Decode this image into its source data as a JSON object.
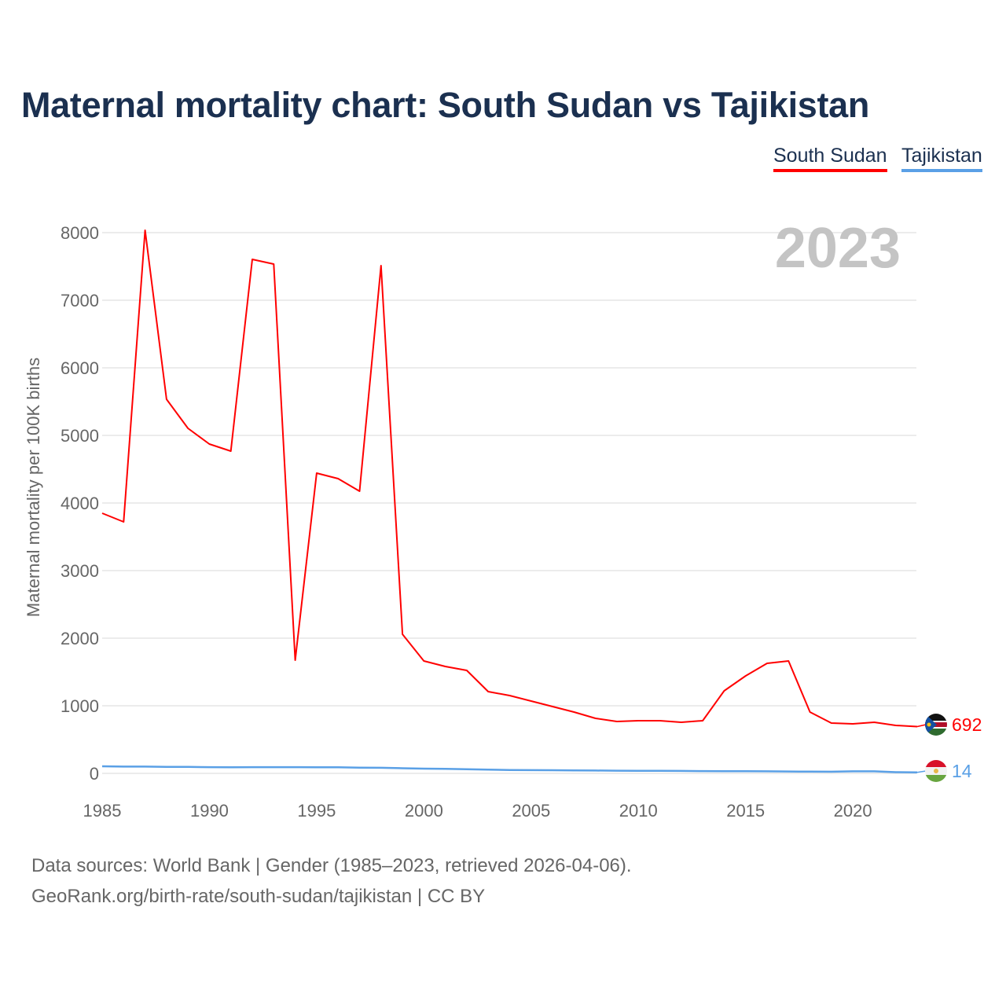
{
  "chart_data": {
    "type": "line",
    "title": "Maternal mortality chart: South Sudan vs Tajikistan",
    "ylabel": "Maternal mortality per 100K births",
    "xlabel": "",
    "ylim": [
      0,
      8000
    ],
    "xlim": [
      1985,
      2023
    ],
    "yticks": [
      0,
      1000,
      2000,
      3000,
      4000,
      5000,
      6000,
      7000,
      8000
    ],
    "xticks": [
      1985,
      1990,
      1995,
      2000,
      2005,
      2010,
      2015,
      2020
    ],
    "grid": true,
    "legend_position": "top-right",
    "year_label": "2023",
    "x": [
      1985,
      1986,
      1987,
      1988,
      1989,
      1990,
      1991,
      1992,
      1993,
      1994,
      1995,
      1996,
      1997,
      1998,
      1999,
      2000,
      2001,
      2002,
      2003,
      2004,
      2005,
      2006,
      2007,
      2008,
      2009,
      2010,
      2011,
      2012,
      2013,
      2014,
      2015,
      2016,
      2017,
      2018,
      2019,
      2020,
      2021,
      2022,
      2023
    ],
    "series": [
      {
        "name": "South Sudan",
        "color": "#ff0000",
        "end_label": "692",
        "values": [
          3849,
          3721,
          8035,
          5535,
          5105,
          4872,
          4767,
          7605,
          7535,
          1674,
          4442,
          4360,
          4174,
          7512,
          2058,
          1663,
          1581,
          1523,
          1209,
          1151,
          1070,
          988,
          907,
          814,
          767,
          779,
          779,
          756,
          779,
          1221,
          1442,
          1628,
          1663,
          907,
          744,
          733,
          756,
          709,
          692
        ]
      },
      {
        "name": "Tajikistan",
        "color": "#5aa0e6",
        "end_label": "14",
        "values": [
          105,
          100,
          100,
          95,
          95,
          92,
          90,
          92,
          92,
          92,
          90,
          90,
          85,
          82,
          75,
          70,
          68,
          62,
          55,
          50,
          48,
          46,
          44,
          42,
          40,
          38,
          37,
          36,
          34,
          32,
          31,
          30,
          28,
          26,
          25,
          30,
          30,
          17,
          14
        ]
      }
    ]
  },
  "footer": {
    "line1": "Data sources: World Bank | Gender (1985–2023, retrieved 2026-04-06).",
    "line2": "GeoRank.org/birth-rate/south-sudan/tajikistan | CC BY"
  }
}
